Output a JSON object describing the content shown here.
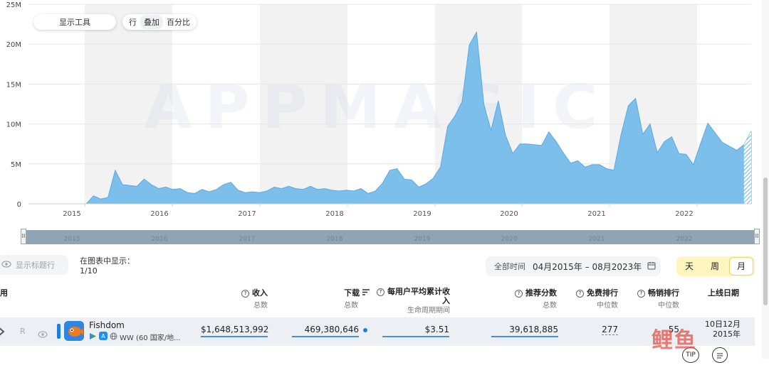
{
  "chart_data": {
    "type": "area",
    "watermark": "APPMAGIC",
    "y_ticks": [
      "25M",
      "20M",
      "15M",
      "10M",
      "5M",
      "0"
    ],
    "x_ticks": [
      "2015",
      "2016",
      "2017",
      "2018",
      "2019",
      "2020",
      "2021",
      "2022"
    ],
    "ylim": [
      0,
      25000000
    ],
    "series": [
      {
        "color": "#7bbfea",
        "values": [
          0,
          0,
          0,
          0,
          0,
          0,
          0,
          0,
          0,
          1000000,
          600000,
          800000,
          4200000,
          2400000,
          2300000,
          2200000,
          3100000,
          2400000,
          1900000,
          2100000,
          1800000,
          1900000,
          1400000,
          1300000,
          1800000,
          1500000,
          1800000,
          2400000,
          2700000,
          1700000,
          1400000,
          1500000,
          1400000,
          1600000,
          2100000,
          1900000,
          2200000,
          1900000,
          1800000,
          2200000,
          1800000,
          1900000,
          1700000,
          1600000,
          1700000,
          1600000,
          1900000,
          1300000,
          1600000,
          2600000,
          4200000,
          4400000,
          3100000,
          3000000,
          2100000,
          2500000,
          3200000,
          4600000,
          9700000,
          11000000,
          12800000,
          19900000,
          21500000,
          12500000,
          9200000,
          12900000,
          8600000,
          6300000,
          7500000,
          7500000,
          7400000,
          7300000,
          9000000,
          7800000,
          6400000,
          5100000,
          5400000,
          4600000,
          4900000,
          4900000,
          4400000,
          4200000,
          8700000,
          12300000,
          13200000,
          8700000,
          10000000,
          6400000,
          7800000,
          8400000,
          6300000,
          6200000,
          4900000,
          7600000,
          10100000,
          8900000,
          7700000,
          7200000,
          6700000,
          7400000,
          9100000
        ]
      }
    ]
  },
  "toolbar": {
    "tools": "显示工具",
    "modes": [
      "行",
      "叠加",
      "百分比"
    ],
    "active_mode": "叠加"
  },
  "navigator": {
    "labels": [
      "2015",
      "2016",
      "2017",
      "2018",
      "2019",
      "2020",
      "2021",
      "2022"
    ],
    "handle": "II"
  },
  "controls": {
    "show_title_row": "显示标题行",
    "shown_in_chart_label": "在图表中显示：",
    "shown_in_chart_count": "1/10",
    "all_time": "全部时间",
    "date_range": "04月2015年 – 08月2023年",
    "periods": [
      "天",
      "周",
      "月"
    ],
    "active_period": "月"
  },
  "table": {
    "headers": {
      "app": "用",
      "revenue": "收入",
      "revenue_sub": "总数",
      "downloads": "下载",
      "downloads_sub": "总数",
      "arpu": "每用户平均累计收入",
      "arpu_sub": "生命周期期间",
      "featuring": "推荐分数",
      "featuring_sub": "总数",
      "free_rank": "免费排行",
      "free_rank_sub": "中位数",
      "grossing_rank": "畅销排行",
      "grossing_rank_sub": "中位数",
      "release_date": "上线日期"
    },
    "row": {
      "badge": "R",
      "app_name": "Fishdom",
      "region": "WW (60 国家/地...",
      "revenue": "$1,648,513,992",
      "downloads": "469,380,646",
      "arpu": "$3.51",
      "featuring": "39,618,885",
      "free_rank": "277",
      "grossing_rank": "55",
      "release_date": "10日12月 2015年"
    },
    "tip": "TIP"
  },
  "brand_watermark": "鲤鱼"
}
